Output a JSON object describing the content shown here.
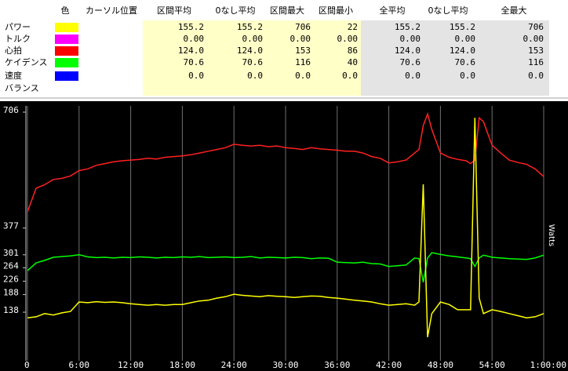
{
  "table": {
    "columns": [
      "色",
      "カーソル位置",
      "区間平均",
      "0なし平均",
      "区間最大",
      "区間最小",
      "全平均",
      "0なし平均",
      "全最大"
    ],
    "rows": [
      {
        "label": "パワー",
        "color": "#ffff00",
        "cells": [
          "155.2",
          "155.2",
          "706",
          "22",
          "155.2",
          "155.2",
          "706"
        ]
      },
      {
        "label": "トルク",
        "color": "#ff00ff",
        "cells": [
          "0.00",
          "0.00",
          "0.00",
          "0.00",
          "0.00",
          "0.00",
          "0.00"
        ]
      },
      {
        "label": "心拍",
        "color": "#ff0000",
        "cells": [
          "124.0",
          "124.0",
          "153",
          "86",
          "124.0",
          "124.0",
          "153"
        ]
      },
      {
        "label": "ケイデンス",
        "color": "#00ff00",
        "cells": [
          "70.6",
          "70.6",
          "116",
          "40",
          "70.6",
          "70.6",
          "116"
        ]
      },
      {
        "label": "速度",
        "color": "#0000ff",
        "cells": [
          "0.0",
          "0.0",
          "0.0",
          "0.0",
          "0.0",
          "0.0",
          "0.0"
        ]
      },
      {
        "label": "バランス"
      }
    ]
  },
  "chart_data": {
    "type": "line",
    "ylabel": "Watts",
    "grid": true,
    "xlim": [
      0,
      60
    ],
    "ylim": [
      0,
      706
    ],
    "xticks": [
      0,
      {
        "value": 6,
        "label": "6:00"
      },
      {
        "value": 12,
        "label": "12:00"
      },
      {
        "value": 18,
        "label": "18:00"
      },
      {
        "value": 24,
        "label": "24:00"
      },
      {
        "value": 30,
        "label": "30:00"
      },
      {
        "value": 36,
        "label": "36:00"
      },
      {
        "value": 42,
        "label": "42:00"
      },
      {
        "value": 48,
        "label": "48:00"
      },
      {
        "value": 54,
        "label": "54:00"
      },
      {
        "value": 60,
        "label": "1:00:00"
      }
    ],
    "yticks": [
      138,
      188,
      226,
      264,
      301,
      377,
      706
    ],
    "x": [
      0,
      1,
      2,
      3,
      4,
      5,
      6,
      7,
      8,
      9,
      10,
      11,
      12,
      13,
      14,
      15,
      16,
      17,
      18,
      19,
      20,
      21,
      22,
      23,
      24,
      25,
      26,
      27,
      28,
      29,
      30,
      31,
      32,
      33,
      34,
      35,
      36,
      37,
      38,
      39,
      40,
      41,
      42,
      43,
      44,
      45,
      45.5,
      46,
      46.5,
      47,
      48,
      49,
      50,
      51,
      51.5,
      52,
      52.5,
      53,
      54,
      55,
      56,
      57,
      58,
      59,
      60
    ],
    "series": [
      {
        "color": "#ff2020",
        "values": [
          423,
          490,
          500,
          515,
          518,
          525,
          540,
          545,
          555,
          560,
          565,
          568,
          570,
          572,
          575,
          573,
          578,
          580,
          582,
          585,
          590,
          595,
          600,
          605,
          615,
          612,
          610,
          612,
          608,
          610,
          605,
          603,
          600,
          605,
          602,
          600,
          598,
          595,
          595,
          590,
          580,
          575,
          562,
          565,
          570,
          590,
          600,
          668,
          701,
          657,
          590,
          578,
          572,
          568,
          560,
          570,
          690,
          679,
          612,
          590,
          570,
          563,
          558,
          545,
          523
        ]
      },
      {
        "color": "#00ff00",
        "values": [
          256,
          278,
          285,
          294,
          296,
          298,
          301,
          295,
          293,
          294,
          292,
          294,
          293,
          295,
          294,
          292,
          294,
          293,
          295,
          294,
          296,
          293,
          294,
          295,
          293,
          294,
          296,
          292,
          294,
          293,
          292,
          294,
          293,
          290,
          292,
          291,
          280,
          279,
          278,
          280,
          276,
          275,
          268,
          270,
          272,
          292,
          290,
          223,
          292,
          307,
          302,
          298,
          295,
          292,
          290,
          268,
          292,
          300,
          294,
          292,
          290,
          289,
          288,
          292,
          300
        ]
      },
      {
        "color": "#ffff00",
        "values": [
          122,
          125,
          134,
          130,
          136,
          140,
          167,
          165,
          168,
          166,
          167,
          165,
          162,
          160,
          158,
          160,
          158,
          160,
          160,
          165,
          170,
          172,
          178,
          182,
          189,
          186,
          184,
          182,
          185,
          183,
          182,
          180,
          182,
          184,
          183,
          180,
          178,
          175,
          172,
          170,
          167,
          162,
          158,
          160,
          162,
          158,
          167,
          501,
          67,
          134,
          167,
          160,
          145,
          145,
          145,
          690,
          178,
          134,
          145,
          140,
          134,
          128,
          122,
          125,
          134
        ]
      }
    ]
  }
}
